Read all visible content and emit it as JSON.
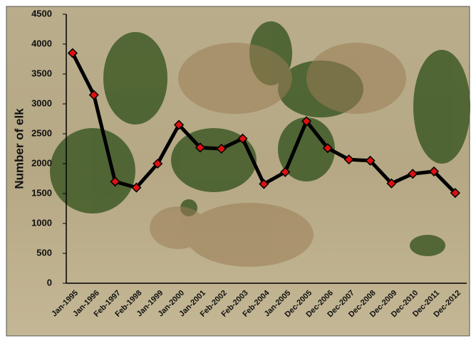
{
  "chart_data": {
    "type": "line",
    "y_label": "Number of elk",
    "categories": [
      "Jan-1995",
      "Jan-1996",
      "Feb-1997",
      "Feb-1998",
      "Jan-1999",
      "Jan-2000",
      "Jan-2001",
      "Feb-2002",
      "Feb-2003",
      "Feb-2004",
      "Jan-2005",
      "Dec-2005",
      "Dec-2006",
      "Dec-2007",
      "Dec-2008",
      "Dec-2009",
      "Dec-2010",
      "Dec-2011",
      "Dec-2012"
    ],
    "values": [
      3850,
      3150,
      1700,
      1600,
      2000,
      2650,
      2270,
      2250,
      2420,
      1660,
      1860,
      2710,
      2260,
      2070,
      2050,
      1670,
      1830,
      1870,
      1510
    ],
    "color": "#000000",
    "marker_color": "#e01010",
    "ylim": [
      0,
      4500
    ],
    "yticks": [
      0,
      500,
      1000,
      1500,
      2000,
      2500,
      3000,
      3500,
      4000,
      4500
    ]
  }
}
